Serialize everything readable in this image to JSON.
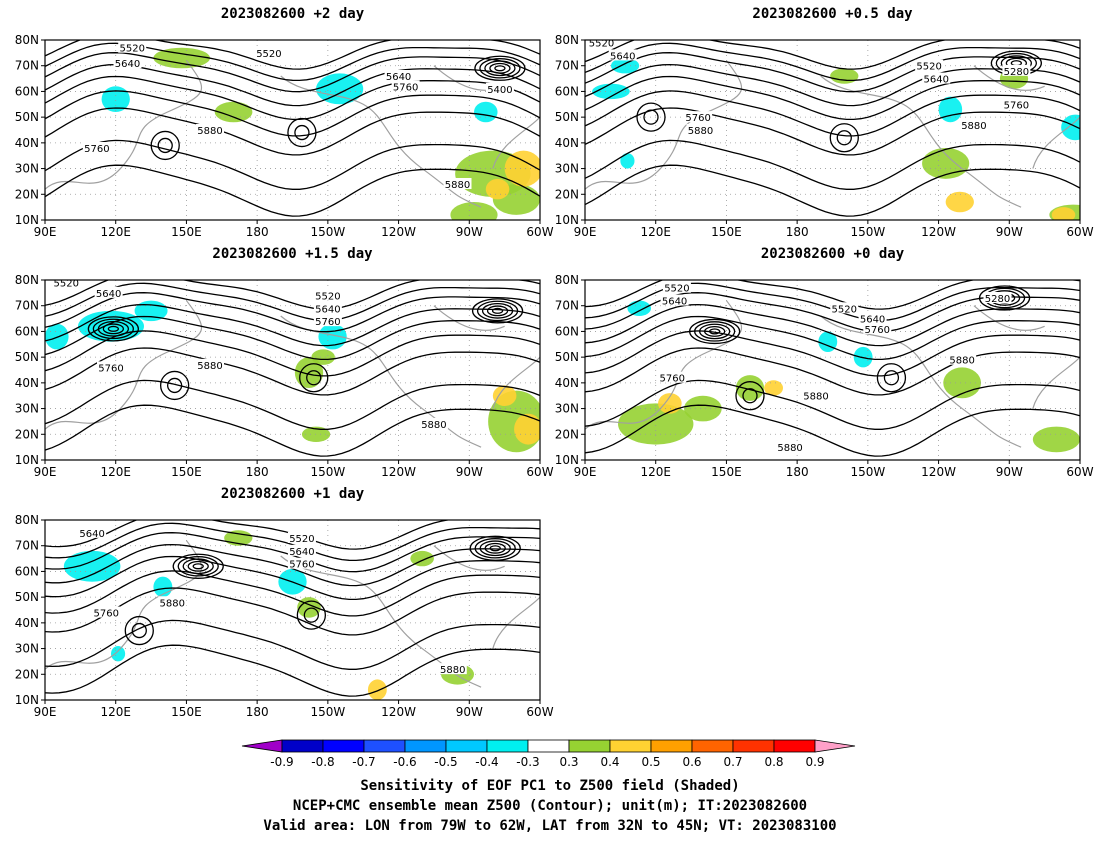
{
  "panels": [
    {
      "id": "p2d",
      "title": "2023082600 +2 day",
      "contours": [
        {
          "v": "5520",
          "lon": 185,
          "lat": 75
        },
        {
          "v": "5640",
          "lon": 240,
          "lat": 66
        },
        {
          "v": "5760",
          "lon": 243,
          "lat": 62
        },
        {
          "v": "5400",
          "lon": 283,
          "lat": 61
        },
        {
          "v": "5520",
          "lon": 127,
          "lat": 77
        },
        {
          "v": "5640",
          "lon": 125,
          "lat": 71
        },
        {
          "v": "5880",
          "lon": 160,
          "lat": 45
        },
        {
          "v": "5760",
          "lon": 112,
          "lat": 38
        },
        {
          "v": "5880",
          "lon": 265,
          "lat": 24
        }
      ]
    },
    {
      "id": "p05d",
      "title": "2023082600 +0.5 day",
      "contours": [
        {
          "v": "5520",
          "lon": 97,
          "lat": 79
        },
        {
          "v": "5640",
          "lon": 106,
          "lat": 74
        },
        {
          "v": "5520",
          "lon": 236,
          "lat": 70
        },
        {
          "v": "5640",
          "lon": 239,
          "lat": 65
        },
        {
          "v": "5280",
          "lon": 273,
          "lat": 68
        },
        {
          "v": "5760",
          "lon": 273,
          "lat": 55
        },
        {
          "v": "5760",
          "lon": 138,
          "lat": 50
        },
        {
          "v": "5880",
          "lon": 139,
          "lat": 45
        },
        {
          "v": "5880",
          "lon": 255,
          "lat": 47
        }
      ]
    },
    {
      "id": "p15d",
      "title": "2023082600 +1.5 day",
      "contours": [
        {
          "v": "5520",
          "lon": 99,
          "lat": 79
        },
        {
          "v": "5640",
          "lon": 117,
          "lat": 75
        },
        {
          "v": "5520",
          "lon": 210,
          "lat": 74
        },
        {
          "v": "5640",
          "lon": 210,
          "lat": 69
        },
        {
          "v": "5760",
          "lon": 210,
          "lat": 64
        },
        {
          "v": "5760",
          "lon": 118,
          "lat": 46
        },
        {
          "v": "5880",
          "lon": 160,
          "lat": 47
        },
        {
          "v": "5880",
          "lon": 255,
          "lat": 24
        }
      ]
    },
    {
      "id": "p0d",
      "title": "2023082600 +0 day",
      "contours": [
        {
          "v": "5520",
          "lon": 129,
          "lat": 77
        },
        {
          "v": "5640",
          "lon": 128,
          "lat": 72
        },
        {
          "v": "5520",
          "lon": 200,
          "lat": 69
        },
        {
          "v": "5640",
          "lon": 212,
          "lat": 65
        },
        {
          "v": "5760",
          "lon": 214,
          "lat": 61
        },
        {
          "v": "5280",
          "lon": 265,
          "lat": 73
        },
        {
          "v": "5760",
          "lon": 127,
          "lat": 42
        },
        {
          "v": "5880",
          "lon": 188,
          "lat": 35
        },
        {
          "v": "5880",
          "lon": 250,
          "lat": 49
        },
        {
          "v": "5880",
          "lon": 177,
          "lat": 15
        }
      ]
    },
    {
      "id": "p1d",
      "title": "2023082600 +1 day",
      "contours": [
        {
          "v": "5640",
          "lon": 110,
          "lat": 75
        },
        {
          "v": "5520",
          "lon": 199,
          "lat": 73
        },
        {
          "v": "5640",
          "lon": 199,
          "lat": 68
        },
        {
          "v": "5760",
          "lon": 199,
          "lat": 63
        },
        {
          "v": "5760",
          "lon": 116,
          "lat": 44
        },
        {
          "v": "5880",
          "lon": 144,
          "lat": 48
        },
        {
          "v": "5880",
          "lon": 263,
          "lat": 22
        }
      ]
    }
  ],
  "axes": {
    "x_ticks": [
      "90E",
      "120E",
      "150E",
      "180",
      "150W",
      "120W",
      "90W",
      "60W"
    ],
    "y_ticks": [
      "10N",
      "20N",
      "30N",
      "40N",
      "50N",
      "60N",
      "70N",
      "80N"
    ]
  },
  "colorbar": {
    "labels": [
      "-0.9",
      "-0.8",
      "-0.7",
      "-0.6",
      "-0.5",
      "-0.4",
      "-0.3",
      "0.3",
      "0.4",
      "0.5",
      "0.6",
      "0.7",
      "0.8",
      "0.9"
    ],
    "colors": [
      "#a000c8",
      "#0000c8",
      "#0000ff",
      "#1e50ff",
      "#0096ff",
      "#00c8ff",
      "#00f0f0",
      "#ffffff",
      "#96d232",
      "#ffd232",
      "#ffa000",
      "#ff6400",
      "#ff3200",
      "#ff0000",
      "#ffa0c8"
    ]
  },
  "captions": {
    "line1": "Sensitivity of EOF PC1 to Z500 field (Shaded)",
    "line2": "NCEP+CMC ensemble mean Z500 (Contour); unit(m); IT:2023082600",
    "line3": "Valid area: LON from 79W to 62W, LAT from 32N to 45N; VT: 2023083100"
  }
}
